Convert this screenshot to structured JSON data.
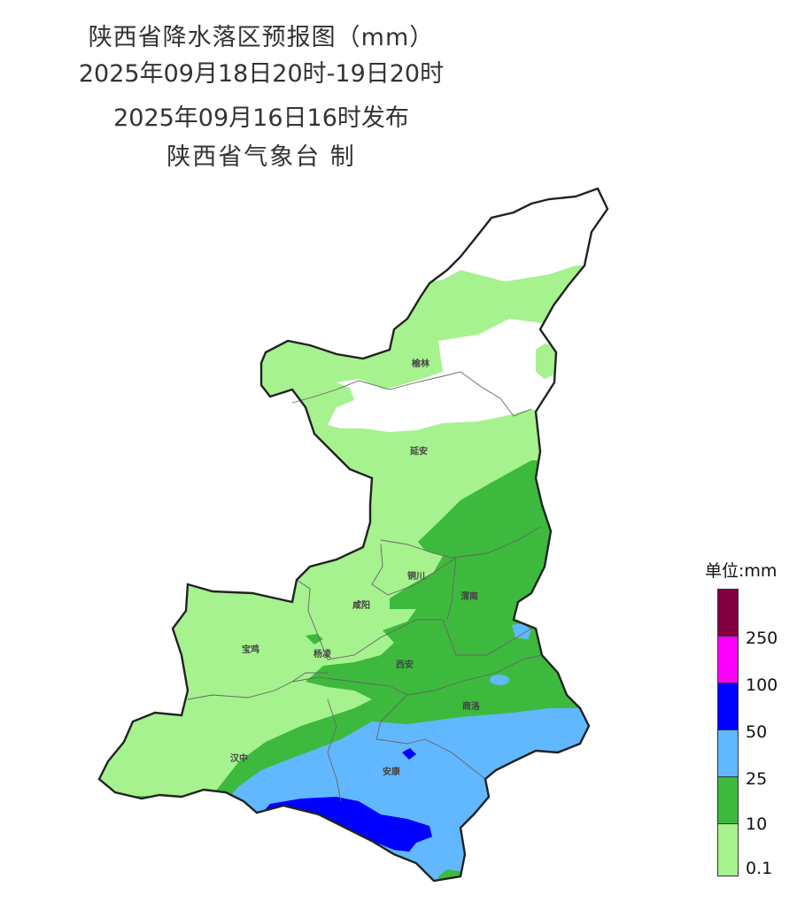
{
  "title": {
    "line1": "陕西省降水落区预报图（mm）",
    "line2": "2025年09月18日20时-19日20时",
    "line3": "2025年09月16日16时发布",
    "line4": "陕西省气象台 制"
  },
  "cities": [
    "榆林",
    "延安",
    "铜川",
    "渭南",
    "咸阳",
    "宝鸡",
    "杨凌",
    "西安",
    "商洛",
    "汉中",
    "安康"
  ],
  "legend": {
    "title": "单位:mm",
    "levels": [
      {
        "label": "0.1",
        "color": "#a6f28f"
      },
      {
        "label": "10",
        "color": "#3dba3d"
      },
      {
        "label": "25",
        "color": "#61b8ff"
      },
      {
        "label": "50",
        "color": "#0000fe"
      },
      {
        "label": "100",
        "color": "#fa00fa"
      },
      {
        "label": "250",
        "color": "#800040"
      }
    ]
  }
}
